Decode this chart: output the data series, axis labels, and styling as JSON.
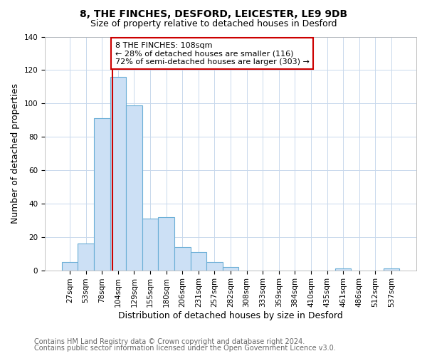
{
  "title": "8, THE FINCHES, DESFORD, LEICESTER, LE9 9DB",
  "subtitle": "Size of property relative to detached houses in Desford",
  "xlabel": "Distribution of detached houses by size in Desford",
  "ylabel": "Number of detached properties",
  "bar_labels": [
    "27sqm",
    "53sqm",
    "78sqm",
    "104sqm",
    "129sqm",
    "155sqm",
    "180sqm",
    "206sqm",
    "231sqm",
    "257sqm",
    "282sqm",
    "308sqm",
    "333sqm",
    "359sqm",
    "384sqm",
    "410sqm",
    "435sqm",
    "461sqm",
    "486sqm",
    "512sqm",
    "537sqm"
  ],
  "bar_heights": [
    5,
    16,
    91,
    116,
    99,
    31,
    32,
    14,
    11,
    5,
    2,
    0,
    0,
    0,
    0,
    0,
    0,
    1,
    0,
    0,
    1
  ],
  "bar_color": "#cce0f5",
  "bar_edge_color": "#6aaed6",
  "vline_color": "#cc0000",
  "annotation_text": "8 THE FINCHES: 108sqm\n← 28% of detached houses are smaller (116)\n72% of semi-detached houses are larger (303) →",
  "annotation_box_color": "#ffffff",
  "annotation_box_edge": "#cc0000",
  "ylim": [
    0,
    140
  ],
  "yticks": [
    0,
    20,
    40,
    60,
    80,
    100,
    120,
    140
  ],
  "footer1": "Contains HM Land Registry data © Crown copyright and database right 2024.",
  "footer2": "Contains public sector information licensed under the Open Government Licence v3.0.",
  "bg_color": "#ffffff",
  "plot_bg_color": "#ffffff",
  "grid_color": "#c8d8ec",
  "title_fontsize": 10,
  "subtitle_fontsize": 9,
  "axis_label_fontsize": 9,
  "tick_fontsize": 7.5,
  "annotation_fontsize": 8,
  "footer_fontsize": 7
}
